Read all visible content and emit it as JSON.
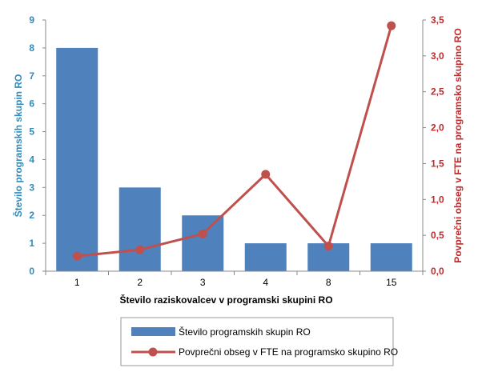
{
  "chart_data": {
    "type": "bar+line",
    "categories": [
      "1",
      "2",
      "3",
      "4",
      "8",
      "15"
    ],
    "xlabel": "Število raziskovalcev v programski skupini RO",
    "ylabel_left": "Število programskih skupin RO",
    "ylabel_right": "Povprečni obseg v FTE na programsko skupino RO",
    "ylim_left": [
      0,
      9
    ],
    "yticks_left": [
      "0",
      "1",
      "2",
      "3",
      "4",
      "5",
      "6",
      "7",
      "8",
      "9"
    ],
    "ylim_right": [
      0,
      3.5
    ],
    "yticks_right": [
      "0,0",
      "0,5",
      "1,0",
      "1,5",
      "2,0",
      "2,5",
      "3,0",
      "3,5"
    ],
    "grid": false,
    "legend_position": "bottom",
    "series": [
      {
        "name": "Število programskih skupin RO",
        "type": "bar",
        "axis": "left",
        "color": "#4f81bd",
        "values": [
          8,
          3,
          2,
          1,
          1,
          1
        ]
      },
      {
        "name": "Povprečni obseg v FTE na programsko skupino RO",
        "type": "line",
        "axis": "right",
        "color": "#c0504d",
        "values": [
          0.21,
          0.3,
          0.52,
          1.35,
          0.35,
          3.42
        ]
      }
    ],
    "colors": {
      "left_axis": "#2e8bc0",
      "right_axis": "#c0292b",
      "axis_line": "#888888"
    }
  }
}
